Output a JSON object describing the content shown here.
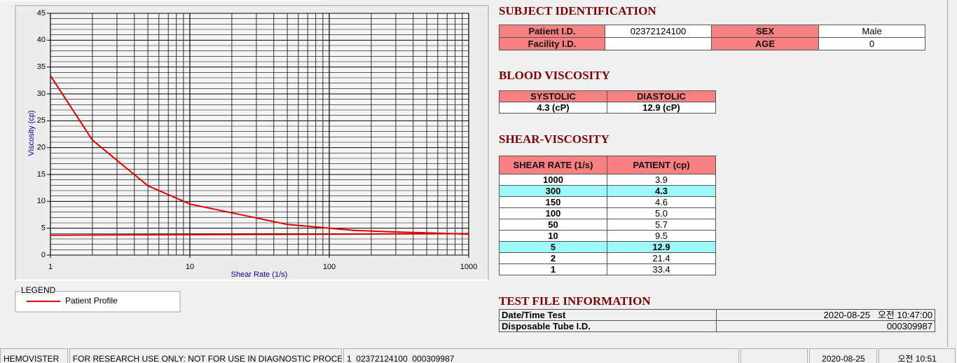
{
  "chart_data": {
    "type": "line",
    "x_label": "Shear Rate (1/s)",
    "y_label": "Viscosity (cp)",
    "xscale": "log",
    "x": [
      1,
      2,
      5,
      10,
      50,
      100,
      150,
      300,
      1000
    ],
    "xlim": [
      1,
      1000
    ],
    "ylim": [
      0,
      45
    ],
    "xticks": [
      1,
      10,
      100,
      1000
    ],
    "yticks": [
      0,
      5,
      10,
      15,
      20,
      25,
      30,
      35,
      40,
      45
    ],
    "grid": true,
    "minor_grid": true,
    "legend_title": "LEGEND",
    "series": [
      {
        "name": "Patient Profile",
        "color": "#e00000",
        "values": [
          33.4,
          21.4,
          12.9,
          9.5,
          5.7,
          5.0,
          4.6,
          4.3,
          3.9
        ]
      },
      {
        "color": "#d00000",
        "x": [
          1,
          1000
        ],
        "values": [
          3.7,
          4.0
        ]
      }
    ]
  },
  "subject": {
    "title": "SUBJECT IDENTIFICATION",
    "rows": [
      [
        "Patient I.D.",
        "02372124100",
        "SEX",
        "Male"
      ],
      [
        "Facility I.D.",
        null,
        "AGE",
        "0"
      ]
    ]
  },
  "blood_viscosity": {
    "title": "BLOOD VISCOSITY",
    "headers": [
      "SYSTOLIC",
      "DIASTOLIC"
    ],
    "values": [
      "4.3 (cP)",
      "12.9 (cP)"
    ]
  },
  "shear_viscosity": {
    "title": "SHEAR-VISCOSITY",
    "headers": [
      "SHEAR RATE (1/s)",
      "PATIENT (cp)"
    ],
    "rows": [
      [
        "1000",
        "3.9"
      ],
      [
        "300",
        "4.3"
      ],
      [
        "150",
        "4.6"
      ],
      [
        "100",
        "5.0"
      ],
      [
        "50",
        "5.7"
      ],
      [
        "10",
        "9.5"
      ],
      [
        "5",
        "12.9"
      ],
      [
        "2",
        "21.4"
      ],
      [
        "1",
        "33.4"
      ]
    ],
    "highlighted_rows": [
      1,
      6
    ]
  },
  "test_file": {
    "title": "TEST FILE INFORMATION",
    "rows": [
      [
        "Date/Time Test",
        "2020-08-25   오전 10:47:00"
      ],
      [
        "Disposable Tube I.D.",
        "000309987"
      ]
    ]
  },
  "status_bar": [
    "HEMOVISTER",
    "FOR RESEARCH USE ONLY: NOT FOR USE IN DIAGNOSTIC PROCEDURES",
    "1  02372124100  000309987",
    null,
    "2020-08-25",
    "오전 10:51"
  ]
}
